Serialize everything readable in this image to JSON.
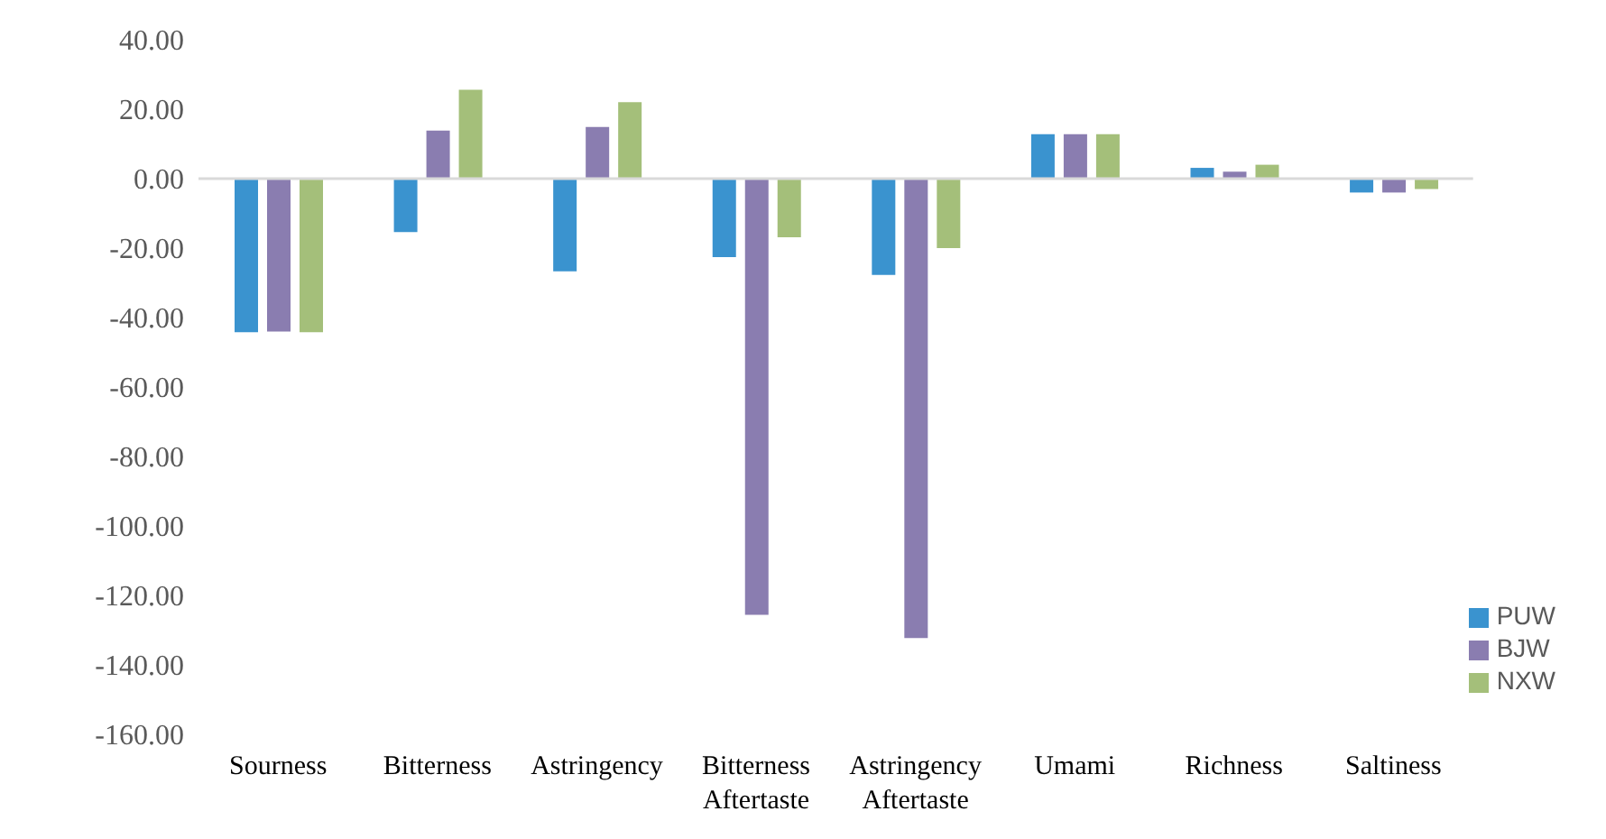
{
  "chart_data": {
    "type": "bar",
    "categories": [
      "Sourness",
      "Bitterness",
      "Astringency",
      "Bitterness Aftertaste",
      "Astringency Aftertaste",
      "Umami",
      "Richness",
      "Saltiness"
    ],
    "series": [
      {
        "name": "PUW",
        "color": "#3a93cf",
        "values": [
          -44.2,
          -15.4,
          -26.7,
          -22.6,
          -27.7,
          12.8,
          3.1,
          -4.0
        ]
      },
      {
        "name": "BJW",
        "color": "#8a7db0",
        "values": [
          -44.0,
          13.8,
          14.9,
          -125.6,
          -132.3,
          12.8,
          2.0,
          -4.0
        ]
      },
      {
        "name": "NXW",
        "color": "#a4bf7a",
        "values": [
          -44.2,
          25.6,
          22.0,
          -16.9,
          -20.0,
          12.8,
          4.0,
          -3.0
        ]
      }
    ],
    "ylim": [
      -160,
      40
    ],
    "yticks": [
      {
        "value": -160,
        "label": "-160.00"
      },
      {
        "value": -140,
        "label": "-140.00"
      },
      {
        "value": -120,
        "label": "-120.00"
      },
      {
        "value": -100,
        "label": "-100.00"
      },
      {
        "value": -80,
        "label": "-80.00"
      },
      {
        "value": -60,
        "label": "-60.00"
      },
      {
        "value": -40,
        "label": "-40.00"
      },
      {
        "value": -20,
        "label": "-20.00"
      },
      {
        "value": 0,
        "label": "0.00"
      },
      {
        "value": 20,
        "label": "20.00"
      },
      {
        "value": 40,
        "label": "40.00"
      }
    ],
    "legend": "bottom right"
  }
}
